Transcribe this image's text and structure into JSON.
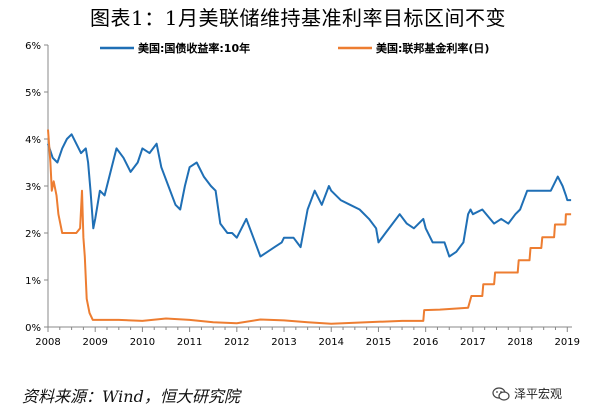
{
  "title": "图表1：1月美联储维持基准利率目标区间不变",
  "source": "资料来源：Wind，恒大研究院",
  "watermark": "泽平宏观",
  "colors": {
    "series1": "#1F6FB5",
    "series2": "#ED7D31"
  },
  "chart_data": {
    "type": "line",
    "title": "图表1：1月美联储维持基准利率目标区间不变",
    "xlabel": "",
    "ylabel": "",
    "x_ticks": [
      "2008",
      "2009",
      "2010",
      "2011",
      "2012",
      "2013",
      "2014",
      "2015",
      "2016",
      "2017",
      "2018",
      "2019"
    ],
    "y_ticks": [
      "0%",
      "1%",
      "2%",
      "3%",
      "4%",
      "5%",
      "6%"
    ],
    "xlim": [
      2008.0,
      2019.1
    ],
    "ylim": [
      0,
      6
    ],
    "grid": false,
    "legend_position": "top",
    "series": [
      {
        "name": "美国:国债收益率:10年",
        "color": "#1F6FB5",
        "points": [
          [
            2008.0,
            3.9
          ],
          [
            2008.1,
            3.6
          ],
          [
            2008.2,
            3.5
          ],
          [
            2008.3,
            3.8
          ],
          [
            2008.4,
            4.0
          ],
          [
            2008.5,
            4.1
          ],
          [
            2008.6,
            3.9
          ],
          [
            2008.7,
            3.7
          ],
          [
            2008.8,
            3.8
          ],
          [
            2008.85,
            3.5
          ],
          [
            2008.9,
            2.9
          ],
          [
            2008.96,
            2.1
          ],
          [
            2009.0,
            2.3
          ],
          [
            2009.1,
            2.9
          ],
          [
            2009.2,
            2.8
          ],
          [
            2009.35,
            3.4
          ],
          [
            2009.45,
            3.8
          ],
          [
            2009.6,
            3.6
          ],
          [
            2009.75,
            3.3
          ],
          [
            2009.9,
            3.5
          ],
          [
            2010.0,
            3.8
          ],
          [
            2010.15,
            3.7
          ],
          [
            2010.3,
            3.9
          ],
          [
            2010.4,
            3.4
          ],
          [
            2010.55,
            3.0
          ],
          [
            2010.7,
            2.6
          ],
          [
            2010.8,
            2.5
          ],
          [
            2010.9,
            3.0
          ],
          [
            2011.0,
            3.4
          ],
          [
            2011.15,
            3.5
          ],
          [
            2011.3,
            3.2
          ],
          [
            2011.45,
            3.0
          ],
          [
            2011.55,
            2.9
          ],
          [
            2011.65,
            2.2
          ],
          [
            2011.8,
            2.0
          ],
          [
            2011.9,
            2.0
          ],
          [
            2012.0,
            1.9
          ],
          [
            2012.2,
            2.3
          ],
          [
            2012.35,
            1.9
          ],
          [
            2012.5,
            1.5
          ],
          [
            2012.65,
            1.6
          ],
          [
            2012.8,
            1.7
          ],
          [
            2012.95,
            1.8
          ],
          [
            2013.0,
            1.9
          ],
          [
            2013.2,
            1.9
          ],
          [
            2013.35,
            1.7
          ],
          [
            2013.5,
            2.5
          ],
          [
            2013.65,
            2.9
          ],
          [
            2013.8,
            2.6
          ],
          [
            2013.95,
            3.0
          ],
          [
            2014.0,
            2.9
          ],
          [
            2014.2,
            2.7
          ],
          [
            2014.4,
            2.6
          ],
          [
            2014.6,
            2.5
          ],
          [
            2014.8,
            2.3
          ],
          [
            2014.95,
            2.1
          ],
          [
            2015.0,
            1.8
          ],
          [
            2015.15,
            2.0
          ],
          [
            2015.3,
            2.2
          ],
          [
            2015.45,
            2.4
          ],
          [
            2015.6,
            2.2
          ],
          [
            2015.75,
            2.1
          ],
          [
            2015.95,
            2.3
          ],
          [
            2016.0,
            2.1
          ],
          [
            2016.15,
            1.8
          ],
          [
            2016.4,
            1.8
          ],
          [
            2016.5,
            1.5
          ],
          [
            2016.65,
            1.6
          ],
          [
            2016.8,
            1.8
          ],
          [
            2016.9,
            2.4
          ],
          [
            2016.95,
            2.5
          ],
          [
            2017.0,
            2.4
          ],
          [
            2017.2,
            2.5
          ],
          [
            2017.45,
            2.2
          ],
          [
            2017.6,
            2.3
          ],
          [
            2017.75,
            2.2
          ],
          [
            2017.9,
            2.4
          ],
          [
            2018.0,
            2.5
          ],
          [
            2018.15,
            2.9
          ],
          [
            2018.35,
            2.9
          ],
          [
            2018.5,
            2.9
          ],
          [
            2018.65,
            2.9
          ],
          [
            2018.8,
            3.2
          ],
          [
            2018.9,
            3.0
          ],
          [
            2018.97,
            2.8
          ],
          [
            2019.0,
            2.7
          ],
          [
            2019.08,
            2.7
          ]
        ]
      },
      {
        "name": "美国:联邦基金利率(日)",
        "color": "#ED7D31",
        "points": [
          [
            2008.0,
            4.2
          ],
          [
            2008.05,
            3.5
          ],
          [
            2008.08,
            2.9
          ],
          [
            2008.12,
            3.1
          ],
          [
            2008.18,
            2.8
          ],
          [
            2008.22,
            2.4
          ],
          [
            2008.3,
            2.0
          ],
          [
            2008.45,
            2.0
          ],
          [
            2008.6,
            2.0
          ],
          [
            2008.68,
            2.1
          ],
          [
            2008.72,
            2.9
          ],
          [
            2008.75,
            1.9
          ],
          [
            2008.78,
            1.5
          ],
          [
            2008.82,
            0.6
          ],
          [
            2008.88,
            0.3
          ],
          [
            2008.95,
            0.15
          ],
          [
            2009.0,
            0.15
          ],
          [
            2009.5,
            0.15
          ],
          [
            2010.0,
            0.13
          ],
          [
            2010.5,
            0.18
          ],
          [
            2011.0,
            0.15
          ],
          [
            2011.5,
            0.1
          ],
          [
            2012.0,
            0.08
          ],
          [
            2012.5,
            0.16
          ],
          [
            2013.0,
            0.14
          ],
          [
            2013.5,
            0.1
          ],
          [
            2014.0,
            0.07
          ],
          [
            2014.5,
            0.09
          ],
          [
            2015.0,
            0.11
          ],
          [
            2015.5,
            0.13
          ],
          [
            2015.95,
            0.13
          ],
          [
            2015.97,
            0.36
          ],
          [
            2016.3,
            0.37
          ],
          [
            2016.9,
            0.41
          ],
          [
            2016.97,
            0.66
          ],
          [
            2017.2,
            0.66
          ],
          [
            2017.22,
            0.91
          ],
          [
            2017.45,
            0.91
          ],
          [
            2017.47,
            1.16
          ],
          [
            2017.95,
            1.16
          ],
          [
            2017.97,
            1.42
          ],
          [
            2018.2,
            1.42
          ],
          [
            2018.22,
            1.68
          ],
          [
            2018.45,
            1.68
          ],
          [
            2018.47,
            1.91
          ],
          [
            2018.72,
            1.91
          ],
          [
            2018.74,
            2.18
          ],
          [
            2018.96,
            2.18
          ],
          [
            2018.97,
            2.4
          ],
          [
            2019.08,
            2.4
          ]
        ]
      }
    ]
  }
}
